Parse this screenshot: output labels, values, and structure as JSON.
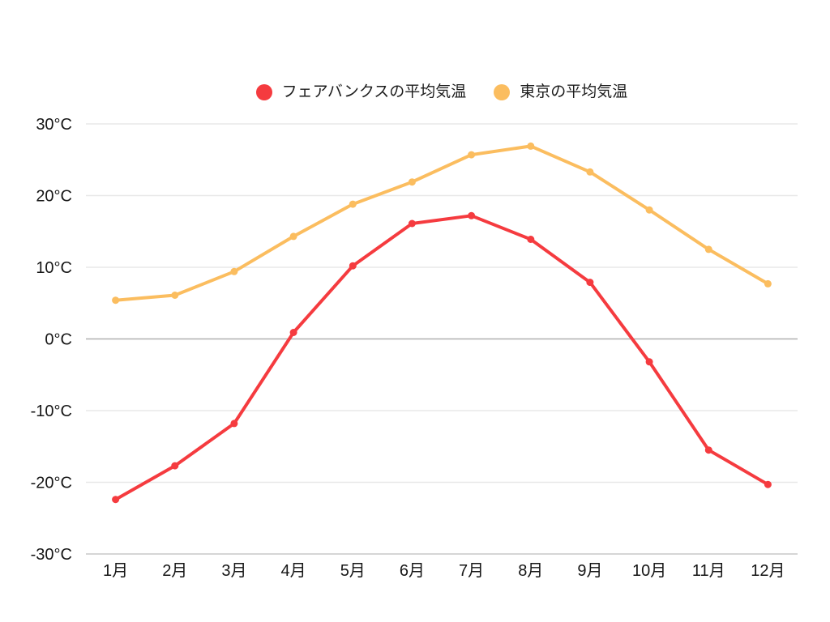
{
  "legend": {
    "items": [
      {
        "key": "fairbanks",
        "label": "フェアバンクスの平均気温",
        "color": "#f53b3f"
      },
      {
        "key": "tokyo",
        "label": "東京の平均気温",
        "color": "#fbbd5f"
      }
    ]
  },
  "chart_data": {
    "type": "line",
    "title": "",
    "categories": [
      "1月",
      "2月",
      "3月",
      "4月",
      "5月",
      "6月",
      "7月",
      "8月",
      "9月",
      "10月",
      "11月",
      "12月"
    ],
    "series": [
      {
        "key": "fairbanks",
        "name": "フェアバンクスの平均気温",
        "color": "#f53b3f",
        "values": [
          -22.4,
          -17.7,
          -11.8,
          0.9,
          10.2,
          16.1,
          17.2,
          13.9,
          7.9,
          -3.2,
          -15.5,
          -20.3
        ]
      },
      {
        "key": "tokyo",
        "name": "東京の平均気温",
        "color": "#fbbd5f",
        "values": [
          5.4,
          6.1,
          9.4,
          14.3,
          18.8,
          21.9,
          25.7,
          26.9,
          23.3,
          18.0,
          12.5,
          7.7
        ]
      }
    ],
    "unit": "°C",
    "ylim": [
      -30,
      30
    ],
    "yticks": [
      {
        "value": 30,
        "label": "30°C"
      },
      {
        "value": 20,
        "label": "20°C"
      },
      {
        "value": 10,
        "label": "10°C"
      },
      {
        "value": 0,
        "label": "0°C"
      },
      {
        "value": -10,
        "label": "-10°C"
      },
      {
        "value": -20,
        "label": "-20°C"
      },
      {
        "value": -30,
        "label": "-30°C"
      }
    ],
    "grid": true,
    "legend_position": "top"
  },
  "colors": {
    "background": "#ffffff",
    "axis_text": "#161616",
    "gridline": "#e8e8e8",
    "zero_line": "#b0b0b0",
    "baseline": "#c9c9c9"
  }
}
